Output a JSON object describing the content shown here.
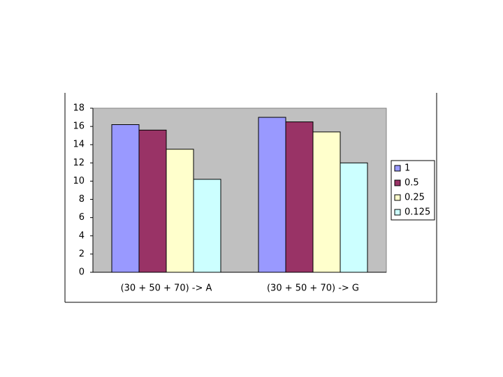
{
  "chart_data": {
    "type": "bar",
    "categories": [
      "(30 + 50 + 70) -> A",
      "(30 + 50 + 70) -> G"
    ],
    "series": [
      {
        "name": "1",
        "color": "#9999ff",
        "values": [
          16.2,
          17.0
        ]
      },
      {
        "name": "0.5",
        "color": "#993366",
        "values": [
          15.6,
          16.5
        ]
      },
      {
        "name": "0.25",
        "color": "#ffffcc",
        "values": [
          13.5,
          15.4
        ]
      },
      {
        "name": "0.125",
        "color": "#ccffff",
        "values": [
          10.2,
          12.0
        ]
      }
    ],
    "ylim": [
      0,
      18
    ],
    "yticks": [
      0,
      2,
      4,
      6,
      8,
      10,
      12,
      14,
      16,
      18
    ],
    "legend": "right"
  }
}
